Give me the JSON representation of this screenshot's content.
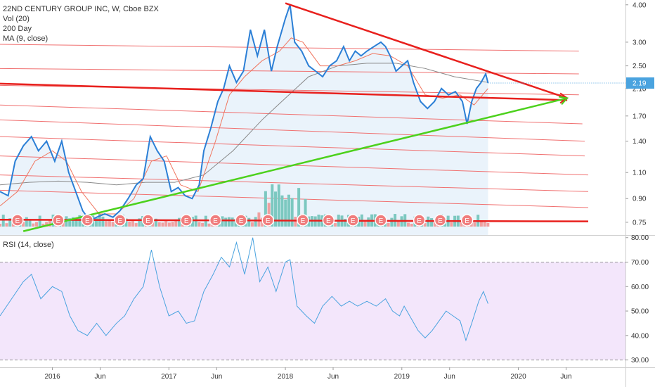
{
  "header": {
    "symbol_line": "22ND CENTURY GROUP INC, W, Cboe BZX",
    "study_vol": "Vol (20)",
    "study_ma200": "200 Day",
    "study_ma9": "MA (9, close)",
    "rsi_label": "RSI (14, close)"
  },
  "last_price_label": "2.19",
  "earnings_marker_label": "E",
  "colors": {
    "price_line": "#2b7fd6",
    "ma9": "#f0755e",
    "ma200": "#888888",
    "area_fill": "#eaf3fb",
    "trend_red": "#e8201d",
    "trend_green": "#4cd11c",
    "grid_red": "#f07070",
    "rsi_line": "#4aa3df",
    "rsi_band": "#f3e6fb",
    "last_price_tag": "#4aa3df",
    "vol_up": "#7cc8c0",
    "vol_down": "#f0a0a0",
    "earnings_fill": "#f07d7d"
  },
  "chart_data": [
    {
      "type": "line",
      "title": "22ND CENTURY GROUP INC, W, Cboe BZX",
      "scale": "log",
      "ylim": [
        0.68,
        4.15
      ],
      "xlim": [
        2015.55,
        2020.92
      ],
      "x_ticks": [
        {
          "x": 2016.0,
          "label": "2016"
        },
        {
          "x": 2016.41,
          "label": "Jun"
        },
        {
          "x": 2017.0,
          "label": "2017"
        },
        {
          "x": 2017.41,
          "label": "Jun"
        },
        {
          "x": 2018.0,
          "label": "2018"
        },
        {
          "x": 2018.41,
          "label": "Jun"
        },
        {
          "x": 2019.0,
          "label": "2019"
        },
        {
          "x": 2019.41,
          "label": "Jun"
        },
        {
          "x": 2020.0,
          "label": "2020"
        },
        {
          "x": 2020.41,
          "label": "Jun"
        }
      ],
      "y_ticks": [
        0.75,
        0.9,
        1.1,
        1.4,
        1.7,
        2.1,
        2.5,
        3.0,
        4.0
      ],
      "y_tick_labels": [
        "0.75",
        "0.90",
        "1.10",
        "1.40",
        "1.70",
        "2.10",
        "2.50",
        "3.00",
        "4.00"
      ],
      "last_value": 2.19,
      "series": [
        {
          "role": "price",
          "points": [
            [
              2015.55,
              0.95
            ],
            [
              2015.62,
              0.92
            ],
            [
              2015.68,
              1.2
            ],
            [
              2015.75,
              1.35
            ],
            [
              2015.82,
              1.45
            ],
            [
              2015.88,
              1.3
            ],
            [
              2015.95,
              1.4
            ],
            [
              2016.02,
              1.2
            ],
            [
              2016.08,
              1.4
            ],
            [
              2016.14,
              1.1
            ],
            [
              2016.2,
              0.95
            ],
            [
              2016.26,
              0.82
            ],
            [
              2016.32,
              0.76
            ],
            [
              2016.38,
              0.78
            ],
            [
              2016.45,
              0.8
            ],
            [
              2016.52,
              0.78
            ],
            [
              2016.58,
              0.82
            ],
            [
              2016.65,
              0.9
            ],
            [
              2016.72,
              1.0
            ],
            [
              2016.78,
              1.05
            ],
            [
              2016.84,
              1.45
            ],
            [
              2016.9,
              1.3
            ],
            [
              2016.96,
              1.2
            ],
            [
              2017.02,
              0.95
            ],
            [
              2017.08,
              0.98
            ],
            [
              2017.14,
              0.92
            ],
            [
              2017.2,
              0.9
            ],
            [
              2017.26,
              1.0
            ],
            [
              2017.3,
              1.3
            ],
            [
              2017.36,
              1.55
            ],
            [
              2017.42,
              1.9
            ],
            [
              2017.47,
              2.1
            ],
            [
              2017.52,
              2.5
            ],
            [
              2017.58,
              2.2
            ],
            [
              2017.64,
              2.4
            ],
            [
              2017.7,
              3.3
            ],
            [
              2017.76,
              2.7
            ],
            [
              2017.82,
              3.3
            ],
            [
              2017.88,
              2.4
            ],
            [
              2017.93,
              2.9
            ],
            [
              2018.0,
              3.6
            ],
            [
              2018.04,
              4.0
            ],
            [
              2018.08,
              3.0
            ],
            [
              2018.14,
              2.8
            ],
            [
              2018.2,
              2.5
            ],
            [
              2018.26,
              2.4
            ],
            [
              2018.32,
              2.3
            ],
            [
              2018.38,
              2.5
            ],
            [
              2018.44,
              2.6
            ],
            [
              2018.5,
              2.9
            ],
            [
              2018.55,
              2.6
            ],
            [
              2018.6,
              2.8
            ],
            [
              2018.65,
              2.7
            ],
            [
              2018.7,
              2.8
            ],
            [
              2018.76,
              2.9
            ],
            [
              2018.82,
              3.0
            ],
            [
              2018.86,
              2.9
            ],
            [
              2018.9,
              2.7
            ],
            [
              2018.95,
              2.4
            ],
            [
              2019.0,
              2.5
            ],
            [
              2019.05,
              2.6
            ],
            [
              2019.1,
              2.2
            ],
            [
              2019.16,
              1.9
            ],
            [
              2019.22,
              1.8
            ],
            [
              2019.28,
              1.9
            ],
            [
              2019.34,
              2.1
            ],
            [
              2019.4,
              2.0
            ],
            [
              2019.46,
              2.05
            ],
            [
              2019.52,
              1.9
            ],
            [
              2019.56,
              1.6
            ],
            [
              2019.6,
              1.9
            ],
            [
              2019.64,
              2.1
            ],
            [
              2019.68,
              2.2
            ],
            [
              2019.72,
              2.35
            ],
            [
              2019.74,
              2.19
            ]
          ]
        },
        {
          "role": "ma9",
          "points": [
            [
              2015.55,
              0.85
            ],
            [
              2015.7,
              0.95
            ],
            [
              2015.85,
              1.2
            ],
            [
              2016.0,
              1.3
            ],
            [
              2016.12,
              1.2
            ],
            [
              2016.25,
              0.95
            ],
            [
              2016.4,
              0.8
            ],
            [
              2016.55,
              0.8
            ],
            [
              2016.7,
              0.9
            ],
            [
              2016.85,
              1.2
            ],
            [
              2016.98,
              1.25
            ],
            [
              2017.1,
              1.0
            ],
            [
              2017.25,
              0.95
            ],
            [
              2017.4,
              1.4
            ],
            [
              2017.52,
              2.0
            ],
            [
              2017.65,
              2.3
            ],
            [
              2017.8,
              2.6
            ],
            [
              2017.95,
              2.8
            ],
            [
              2018.05,
              3.1
            ],
            [
              2018.15,
              3.0
            ],
            [
              2018.3,
              2.5
            ],
            [
              2018.45,
              2.5
            ],
            [
              2018.6,
              2.6
            ],
            [
              2018.75,
              2.75
            ],
            [
              2018.9,
              2.7
            ],
            [
              2019.05,
              2.5
            ],
            [
              2019.2,
              2.0
            ],
            [
              2019.35,
              1.95
            ],
            [
              2019.5,
              2.0
            ],
            [
              2019.62,
              1.85
            ],
            [
              2019.74,
              2.1
            ]
          ]
        },
        {
          "role": "ma200",
          "points": [
            [
              2015.55,
              1.0
            ],
            [
              2015.8,
              1.02
            ],
            [
              2016.05,
              1.03
            ],
            [
              2016.3,
              1.02
            ],
            [
              2016.55,
              1.0
            ],
            [
              2016.8,
              1.02
            ],
            [
              2017.05,
              1.02
            ],
            [
              2017.3,
              1.08
            ],
            [
              2017.55,
              1.3
            ],
            [
              2017.8,
              1.65
            ],
            [
              2018.0,
              1.95
            ],
            [
              2018.2,
              2.3
            ],
            [
              2018.45,
              2.5
            ],
            [
              2018.7,
              2.55
            ],
            [
              2018.95,
              2.55
            ],
            [
              2019.2,
              2.45
            ],
            [
              2019.45,
              2.3
            ],
            [
              2019.74,
              2.2
            ]
          ]
        }
      ]
    },
    {
      "type": "line",
      "title": "RSI (14, close)",
      "ylim": [
        27,
        80.5
      ],
      "y_ticks": [
        30,
        40,
        50,
        60,
        70,
        80
      ],
      "y_tick_labels": [
        "30.00",
        "40.00",
        "50.00",
        "60.00",
        "70.00",
        "80.00"
      ],
      "band": [
        30,
        70
      ],
      "series": [
        {
          "role": "rsi",
          "points": [
            [
              2015.55,
              48
            ],
            [
              2015.65,
              55
            ],
            [
              2015.75,
              62
            ],
            [
              2015.82,
              65
            ],
            [
              2015.9,
              55
            ],
            [
              2016.0,
              60
            ],
            [
              2016.08,
              58
            ],
            [
              2016.15,
              48
            ],
            [
              2016.22,
              42
            ],
            [
              2016.3,
              40
            ],
            [
              2016.38,
              45
            ],
            [
              2016.46,
              40
            ],
            [
              2016.55,
              45
            ],
            [
              2016.62,
              48
            ],
            [
              2016.7,
              55
            ],
            [
              2016.78,
              60
            ],
            [
              2016.85,
              75
            ],
            [
              2016.92,
              60
            ],
            [
              2017.0,
              48
            ],
            [
              2017.08,
              50
            ],
            [
              2017.15,
              45
            ],
            [
              2017.22,
              46
            ],
            [
              2017.3,
              58
            ],
            [
              2017.38,
              65
            ],
            [
              2017.45,
              72
            ],
            [
              2017.52,
              68
            ],
            [
              2017.58,
              78
            ],
            [
              2017.65,
              65
            ],
            [
              2017.72,
              80
            ],
            [
              2017.78,
              62
            ],
            [
              2017.85,
              68
            ],
            [
              2017.92,
              58
            ],
            [
              2018.0,
              70
            ],
            [
              2018.04,
              71
            ],
            [
              2018.1,
              52
            ],
            [
              2018.18,
              48
            ],
            [
              2018.25,
              45
            ],
            [
              2018.32,
              52
            ],
            [
              2018.4,
              56
            ],
            [
              2018.48,
              52
            ],
            [
              2018.55,
              54
            ],
            [
              2018.62,
              52
            ],
            [
              2018.7,
              54
            ],
            [
              2018.78,
              52
            ],
            [
              2018.86,
              55
            ],
            [
              2018.92,
              50
            ],
            [
              2018.98,
              48
            ],
            [
              2019.02,
              52
            ],
            [
              2019.08,
              47
            ],
            [
              2019.14,
              42
            ],
            [
              2019.2,
              39
            ],
            [
              2019.26,
              42
            ],
            [
              2019.32,
              46
            ],
            [
              2019.38,
              50
            ],
            [
              2019.44,
              48
            ],
            [
              2019.5,
              46
            ],
            [
              2019.55,
              38
            ],
            [
              2019.6,
              45
            ],
            [
              2019.66,
              54
            ],
            [
              2019.7,
              58
            ],
            [
              2019.74,
              53
            ]
          ]
        }
      ]
    }
  ]
}
